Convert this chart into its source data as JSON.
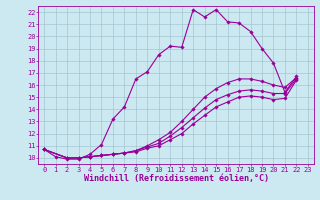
{
  "xlabel": "Windchill (Refroidissement éolien,°C)",
  "bg_color": "#cce8f0",
  "grid_color": "#9bbfcc",
  "line_color": "#990099",
  "xlim": [
    -0.5,
    23.5
  ],
  "ylim": [
    9.5,
    22.5
  ],
  "xticks": [
    0,
    1,
    2,
    3,
    4,
    5,
    6,
    7,
    8,
    9,
    10,
    11,
    12,
    13,
    14,
    15,
    16,
    17,
    18,
    19,
    20,
    21,
    22,
    23
  ],
  "yticks": [
    10,
    11,
    12,
    13,
    14,
    15,
    16,
    17,
    18,
    19,
    20,
    21,
    22
  ],
  "line1_x": [
    0,
    1,
    2,
    3,
    4,
    5,
    6,
    7,
    8,
    9,
    10,
    11,
    12,
    13,
    14,
    15,
    16,
    17,
    18,
    19,
    20,
    21,
    22
  ],
  "line1_y": [
    10.7,
    10.1,
    9.9,
    9.9,
    10.3,
    11.1,
    13.2,
    14.2,
    16.5,
    17.1,
    18.5,
    19.2,
    19.1,
    22.2,
    21.6,
    22.2,
    21.2,
    21.1,
    20.4,
    19.0,
    17.8,
    15.4,
    16.7
  ],
  "line2_x": [
    0,
    2,
    3,
    4,
    5,
    6,
    7,
    8,
    9,
    10,
    11,
    12,
    13,
    14,
    15,
    16,
    17,
    18,
    19,
    20,
    21,
    22
  ],
  "line2_y": [
    10.7,
    10.0,
    10.0,
    10.1,
    10.2,
    10.3,
    10.4,
    10.6,
    11.0,
    11.5,
    12.1,
    13.0,
    14.0,
    15.0,
    15.7,
    16.2,
    16.5,
    16.5,
    16.3,
    16.0,
    15.8,
    16.6
  ],
  "line3_x": [
    0,
    2,
    3,
    4,
    5,
    6,
    7,
    8,
    9,
    10,
    11,
    12,
    13,
    14,
    15,
    16,
    17,
    18,
    19,
    20,
    21,
    22
  ],
  "line3_y": [
    10.7,
    10.0,
    10.0,
    10.1,
    10.2,
    10.3,
    10.4,
    10.6,
    10.9,
    11.2,
    11.8,
    12.5,
    13.3,
    14.1,
    14.8,
    15.2,
    15.5,
    15.6,
    15.5,
    15.3,
    15.3,
    16.5
  ],
  "line4_x": [
    0,
    2,
    3,
    4,
    5,
    6,
    7,
    8,
    9,
    10,
    11,
    12,
    13,
    14,
    15,
    16,
    17,
    18,
    19,
    20,
    21,
    22
  ],
  "line4_y": [
    10.7,
    10.0,
    10.0,
    10.1,
    10.2,
    10.3,
    10.4,
    10.5,
    10.8,
    11.0,
    11.5,
    12.0,
    12.8,
    13.5,
    14.2,
    14.6,
    15.0,
    15.1,
    15.0,
    14.8,
    14.9,
    16.4
  ],
  "tick_fontsize": 5.0,
  "xlabel_fontsize": 6.0
}
